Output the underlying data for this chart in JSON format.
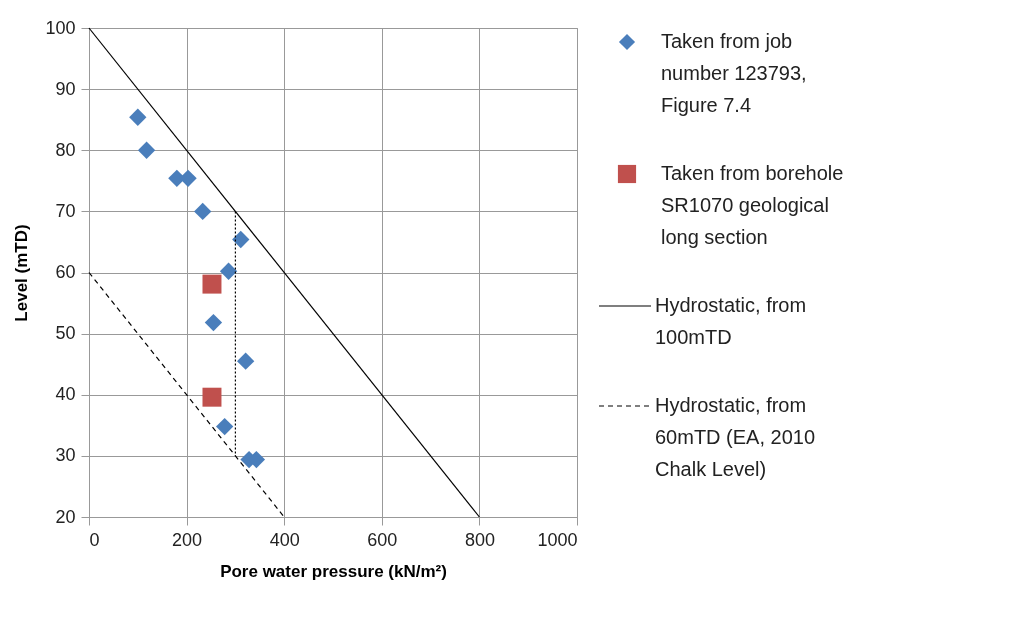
{
  "chart_data": {
    "type": "scatter",
    "xlabel": "Pore water pressure (kN/m²)",
    "ylabel": "Level (mTD)",
    "xlim": [
      0,
      1000
    ],
    "xticks": [
      0,
      200,
      400,
      600,
      800,
      1000
    ],
    "ylim": [
      20,
      100
    ],
    "yticks": [
      20,
      30,
      40,
      50,
      60,
      70,
      80,
      90,
      100
    ],
    "grid": true,
    "legend": "right",
    "series": [
      {
        "name": "Taken from job number 123793, Figure 7.4",
        "marker": "diamond",
        "color": "#4a7ebb",
        "x": [
          100,
          118,
          180,
          203,
          233,
          311,
          286,
          255,
          321,
          278,
          328,
          343
        ],
        "values": [
          85.4,
          80,
          75.4,
          75.4,
          70,
          65.4,
          60.2,
          51.8,
          45.5,
          34.8,
          29.4,
          29.4
        ]
      },
      {
        "name": "Taken from borehole SR1070 geological long section",
        "marker": "square",
        "color": "#c0504d",
        "x": [
          252,
          252
        ],
        "values": [
          58.1,
          39.6
        ]
      },
      {
        "name": "Hydrostatic, from 100mTD",
        "type": "line",
        "line_style": "solid",
        "color": "#000000",
        "x": [
          0,
          800
        ],
        "values": [
          100,
          20
        ]
      },
      {
        "name": "Hydrostatic, from 60mTD (EA, 2010 Chalk Level)",
        "type": "line",
        "line_style": "dashed",
        "color": "#000000",
        "x": [
          0,
          400
        ],
        "values": [
          60,
          20
        ]
      },
      {
        "type": "line",
        "line_style": "dotted",
        "color": "#000000",
        "x": [
          300,
          300
        ],
        "values": [
          70,
          30
        ]
      }
    ]
  }
}
